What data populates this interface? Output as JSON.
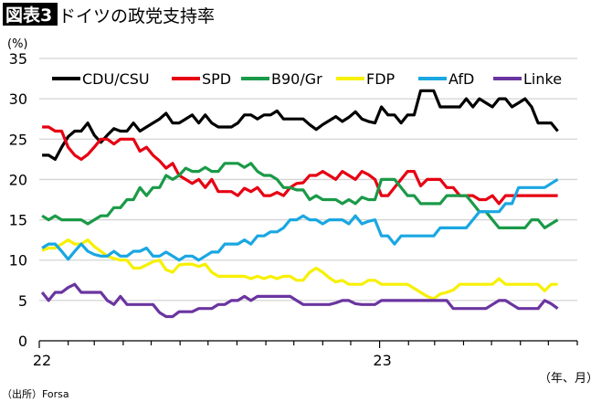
{
  "header": {
    "badge": "図表3",
    "title": "ドイツの政党支持率"
  },
  "source": "（出所）Forsa",
  "chart_data": {
    "type": "line",
    "title": "ドイツの政党支持率",
    "ylabel": "(%)",
    "xlabel": "（年、月）",
    "ylim": [
      0,
      35
    ],
    "yticks": [
      "0",
      "5",
      "10",
      "15",
      "20",
      "25",
      "30",
      "35"
    ],
    "xtick_labels": [
      {
        "date": "2022-01-01",
        "label": "22"
      },
      {
        "date": "2023-01-01",
        "label": "23"
      }
    ],
    "xlim": [
      "2022-01-01",
      "2023-08-01"
    ],
    "grid": true,
    "legend_position": "top",
    "x": [
      "2022-01-04",
      "2022-01-11",
      "2022-01-18",
      "2022-01-25",
      "2022-02-01",
      "2022-02-08",
      "2022-02-15",
      "2022-02-22",
      "2022-03-01",
      "2022-03-08",
      "2022-03-15",
      "2022-03-22",
      "2022-03-29",
      "2022-04-05",
      "2022-04-12",
      "2022-04-19",
      "2022-04-26",
      "2022-05-03",
      "2022-05-10",
      "2022-05-17",
      "2022-05-24",
      "2022-05-31",
      "2022-06-07",
      "2022-06-14",
      "2022-06-21",
      "2022-06-28",
      "2022-07-05",
      "2022-07-12",
      "2022-07-19",
      "2022-07-26",
      "2022-08-02",
      "2022-08-09",
      "2022-08-16",
      "2022-08-23",
      "2022-08-30",
      "2022-09-06",
      "2022-09-13",
      "2022-09-20",
      "2022-09-27",
      "2022-10-04",
      "2022-10-11",
      "2022-10-18",
      "2022-10-25",
      "2022-11-01",
      "2022-11-08",
      "2022-11-15",
      "2022-11-22",
      "2022-11-29",
      "2022-12-06",
      "2022-12-13",
      "2022-12-20",
      "2022-12-27",
      "2023-01-03",
      "2023-01-10",
      "2023-01-17",
      "2023-01-24",
      "2023-01-31",
      "2023-02-07",
      "2023-02-14",
      "2023-02-21",
      "2023-02-28",
      "2023-03-07",
      "2023-03-14",
      "2023-03-21",
      "2023-03-28",
      "2023-04-04",
      "2023-04-11",
      "2023-04-18",
      "2023-04-25",
      "2023-05-02",
      "2023-05-09",
      "2023-05-16",
      "2023-05-23",
      "2023-05-30",
      "2023-06-06",
      "2023-06-13",
      "2023-06-20",
      "2023-06-27",
      "2023-07-04",
      "2023-07-11"
    ],
    "series": [
      {
        "name": "CDU/CSU",
        "color": "#000000",
        "values": [
          23,
          23,
          22.5,
          24,
          25.3,
          26,
          26,
          27,
          25.5,
          24.6,
          25.5,
          26.3,
          26,
          26,
          27,
          26,
          26.5,
          27,
          27.5,
          28.2,
          27,
          27,
          27.5,
          28,
          27,
          28,
          27,
          26.5,
          26.5,
          26.5,
          27,
          28,
          28,
          27.5,
          28,
          28,
          28.5,
          27.5,
          27.5,
          27.5,
          27.5,
          26.8,
          26.2,
          26.8,
          27.3,
          27.8,
          27.2,
          27.7,
          28.4,
          27.5,
          27.2,
          27,
          29,
          28,
          28,
          27,
          28,
          28,
          31,
          31,
          31,
          29,
          29,
          29,
          29,
          30,
          29,
          30,
          29.5,
          29,
          30,
          30,
          29,
          29.5,
          30,
          29,
          27,
          27,
          27,
          26
        ]
      },
      {
        "name": "SPD",
        "color": "#e60012",
        "values": [
          26.5,
          26.5,
          26,
          26,
          24,
          23,
          22.5,
          23.1,
          24,
          25,
          25,
          24.4,
          25,
          25,
          25,
          23.5,
          24,
          23,
          22.3,
          21.4,
          22,
          20.5,
          20,
          19.5,
          20,
          19,
          20,
          18.5,
          18.5,
          18.5,
          18,
          18.9,
          18.5,
          19,
          18,
          18,
          18.4,
          18,
          19,
          19.5,
          19.6,
          20.5,
          20.5,
          21,
          20.5,
          20,
          21,
          20.5,
          20,
          21,
          20.6,
          20,
          18,
          18,
          19,
          20,
          21,
          21,
          19.2,
          20,
          20,
          20,
          19,
          19,
          18,
          18,
          18,
          17.5,
          17.5,
          18,
          17,
          18,
          18,
          18,
          18,
          18,
          18,
          18,
          18,
          18
        ]
      },
      {
        "name": "B90/Gr",
        "color": "#1a9a48",
        "values": [
          15.5,
          15,
          15.5,
          15,
          15,
          15,
          15,
          14.5,
          15,
          15.5,
          15.5,
          16.5,
          16.5,
          17.5,
          17.5,
          19,
          18,
          19,
          19,
          20.5,
          20,
          20.5,
          21.4,
          21,
          21,
          21.5,
          21,
          21,
          22,
          22,
          22,
          21.5,
          22,
          21,
          20.5,
          20.5,
          20,
          19,
          19,
          18.7,
          18.7,
          17.5,
          18,
          17.5,
          17.5,
          17.5,
          17,
          17.5,
          17,
          17.8,
          17.5,
          17.5,
          20,
          20,
          20,
          19,
          18,
          18,
          17,
          17,
          17,
          17,
          18,
          18,
          18,
          18,
          17,
          16,
          16,
          15,
          14,
          14,
          14,
          14,
          14,
          15,
          15,
          14,
          14.5,
          15
        ]
      },
      {
        "name": "FDP",
        "color": "#f7f000",
        "values": [
          11.2,
          11.5,
          11.5,
          12,
          12.5,
          12,
          12,
          12.5,
          11.7,
          11.1,
          10.5,
          10.2,
          10,
          10,
          9,
          9,
          9.4,
          9.8,
          10,
          8.8,
          8.5,
          9.4,
          9.5,
          9.5,
          9.2,
          9.5,
          8.5,
          8,
          8,
          8,
          8,
          8,
          7.7,
          8,
          7.7,
          8,
          7.7,
          8,
          8,
          7.5,
          7.5,
          8.5,
          9,
          8.5,
          7.8,
          7.3,
          7.5,
          7,
          7,
          7,
          7.5,
          7.5,
          7,
          7,
          7,
          7,
          7,
          6.5,
          6,
          5.5,
          5.2,
          5.8,
          6,
          6.3,
          7,
          7,
          7,
          7,
          7,
          7,
          7.7,
          7,
          7,
          7,
          7,
          7,
          7,
          6.2,
          7,
          7
        ]
      },
      {
        "name": "AfD",
        "color": "#1aa7e2",
        "values": [
          11.5,
          12,
          12,
          11.1,
          10.1,
          11.1,
          12,
          11.1,
          10.7,
          10.5,
          10.5,
          11.1,
          10.5,
          10.5,
          11.1,
          11.1,
          11.5,
          10.5,
          10.5,
          11,
          10.5,
          10,
          10.5,
          10.5,
          10,
          10.5,
          11,
          11,
          12,
          12,
          12,
          12.5,
          12,
          13,
          13,
          13.5,
          13.5,
          14,
          15,
          15,
          15.5,
          15,
          15,
          14.5,
          15,
          15,
          15,
          14.5,
          15.5,
          14.5,
          14.8,
          15,
          13,
          13,
          12,
          13,
          13,
          13,
          13,
          13,
          13,
          14,
          14,
          14,
          14,
          14,
          15,
          16,
          16,
          16,
          16,
          17,
          17,
          19,
          19,
          19,
          19,
          19,
          19.5,
          20
        ]
      },
      {
        "name": "Linke",
        "color": "#6a35a0",
        "values": [
          6,
          5,
          6,
          6,
          6.6,
          7,
          6,
          6,
          6,
          6,
          5,
          4.5,
          5.5,
          4.5,
          4.5,
          4.5,
          4.5,
          4.5,
          3.5,
          3,
          3,
          3.6,
          3.6,
          3.6,
          4,
          4,
          4,
          4.5,
          4.5,
          5,
          5,
          5.5,
          5,
          5.5,
          5.5,
          5.5,
          5.5,
          5.5,
          5.5,
          5,
          4.5,
          4.5,
          4.5,
          4.5,
          4.5,
          4.7,
          5,
          5,
          4.6,
          4.5,
          4.5,
          4.5,
          5,
          5,
          5,
          5,
          5,
          5,
          5,
          5,
          5,
          5,
          5,
          4,
          4,
          4,
          4,
          4,
          4,
          4.5,
          5,
          5,
          4.5,
          4,
          4,
          4,
          4,
          5,
          4.6,
          4
        ]
      }
    ]
  }
}
